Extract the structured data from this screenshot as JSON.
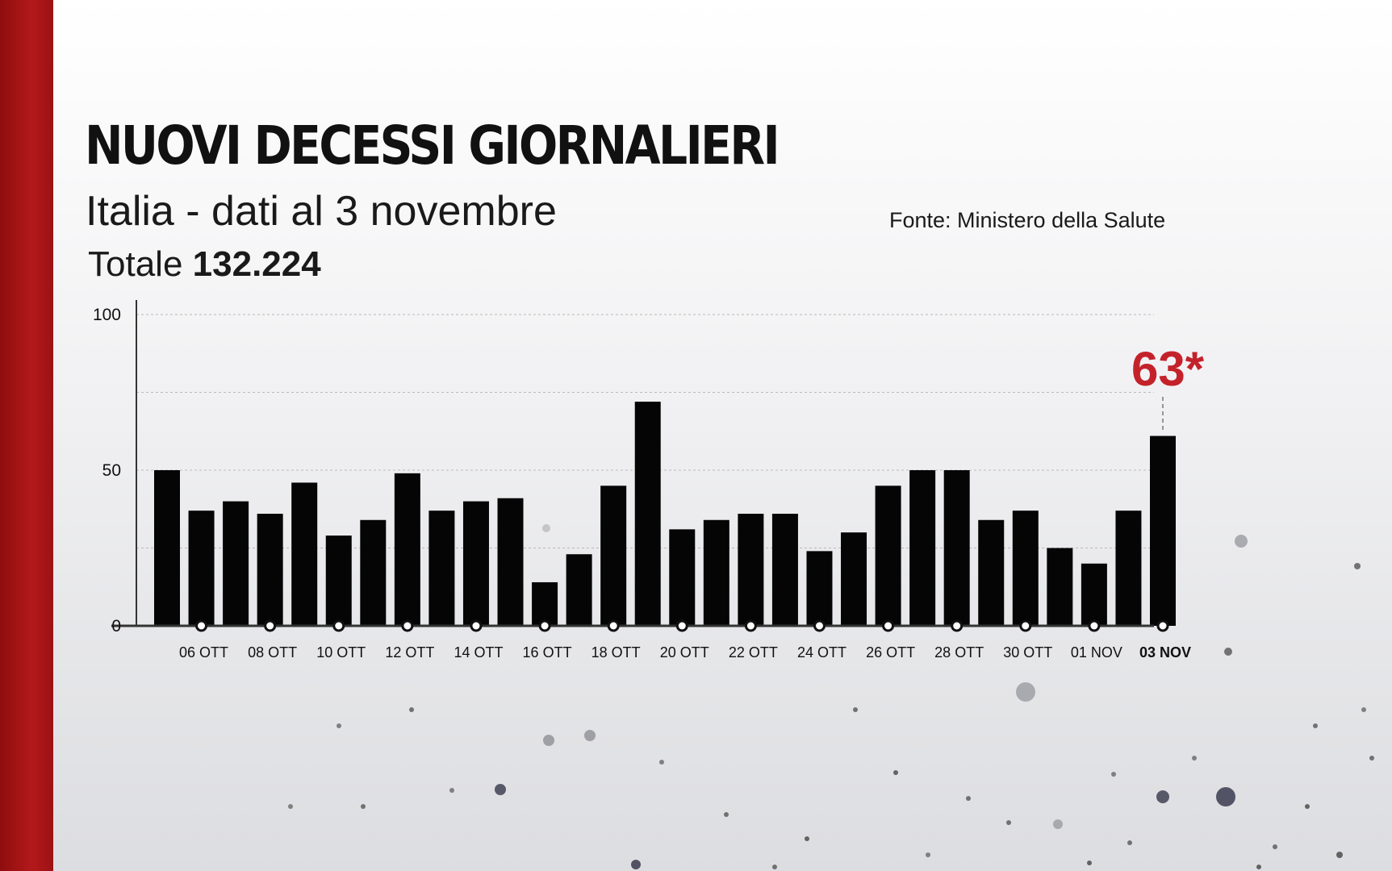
{
  "header": {
    "title": "NUOVI DECESSI GIORNALIERI",
    "subtitle": "Italia - dati al 3 novembre",
    "source": "Fonte: Ministero della Salute",
    "total_label": "Totale",
    "total_value": "132.224"
  },
  "colors": {
    "bar": "#050505",
    "callout": "#c4222b",
    "side_bar": "#a81517",
    "grid": "#b9b9bd",
    "axis": "#333333"
  },
  "chart_data": {
    "type": "bar",
    "title": "NUOVI DECESSI GIORNALIERI",
    "xlabel": "",
    "ylabel": "",
    "ylim": [
      0,
      100
    ],
    "yticks": [
      0,
      50,
      100
    ],
    "grid": true,
    "grid_values": [
      25,
      50,
      75,
      100
    ],
    "categories": [
      "05 OTT",
      "06 OTT",
      "07 OTT",
      "08 OTT",
      "09 OTT",
      "10 OTT",
      "11 OTT",
      "12 OTT",
      "13 OTT",
      "14 OTT",
      "15 OTT",
      "16 OTT",
      "17 OTT",
      "18 OTT",
      "19 OTT",
      "20 OTT",
      "21 OTT",
      "22 OTT",
      "23 OTT",
      "24 OTT",
      "25 OTT",
      "26 OTT",
      "27 OTT",
      "28 OTT",
      "29 OTT",
      "30 OTT",
      "31 OTT",
      "01 NOV",
      "02 NOV",
      "03 NOV"
    ],
    "values": [
      50,
      37,
      40,
      36,
      46,
      29,
      34,
      49,
      37,
      40,
      41,
      14,
      23,
      45,
      72,
      31,
      34,
      36,
      36,
      24,
      30,
      45,
      50,
      50,
      34,
      37,
      25,
      20,
      37,
      61
    ],
    "tick_labels": [
      "06 OTT",
      "08 OTT",
      "10 OTT",
      "12 OTT",
      "14 OTT",
      "16 OTT",
      "18 OTT",
      "20 OTT",
      "22 OTT",
      "24 OTT",
      "26 OTT",
      "28 OTT",
      "30 OTT",
      "01 NOV",
      "03 NOV"
    ],
    "annotation": {
      "category": "03 NOV",
      "text": "63*"
    }
  }
}
